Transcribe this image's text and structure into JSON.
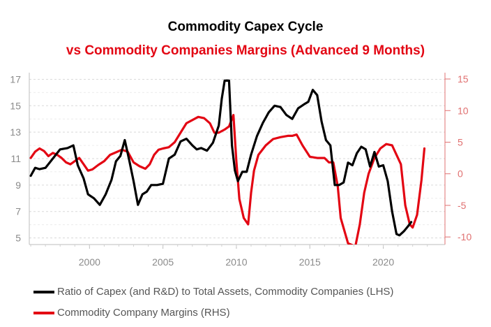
{
  "title": "Commodity Capex Cycle",
  "subtitle": "vs Commodity Companies Margins (Advanced 9 Months)",
  "colors": {
    "lhs": "#000000",
    "rhs": "#e30613",
    "grid": "#d9d9d9",
    "tick": "#8a8a8a",
    "rhs_tick": "#e07070"
  },
  "chart_data": {
    "type": "line",
    "title": "Commodity Capex Cycle",
    "subtitle": "vs Commodity Companies Margins (Advanced 9 Months)",
    "x_ticks": [
      "2000",
      "2005",
      "2010",
      "2015",
      "2020"
    ],
    "xlim": [
      1995.9,
      2024.2
    ],
    "y_left": {
      "ticks": [
        "5",
        "7",
        "9",
        "11",
        "13",
        "15",
        "17"
      ],
      "ylim": [
        4.5,
        17.5
      ]
    },
    "y_right": {
      "ticks": [
        "-10",
        "-5",
        "0",
        "5",
        "10",
        "15"
      ],
      "ylim": [
        -11.2,
        16
      ]
    },
    "grid": true,
    "legend_position": "bottom-left",
    "series": [
      {
        "name": "Ratio of Capex (and R&D) to Total Assets, Commodity Companies (LHS)",
        "axis": "left",
        "x": [
          1996.0,
          1996.3,
          1996.6,
          1997.0,
          1997.5,
          1998.0,
          1998.5,
          1998.9,
          1999.2,
          1999.6,
          1999.9,
          2000.3,
          2000.7,
          2001.1,
          2001.5,
          2001.8,
          2002.1,
          2002.4,
          2002.7,
          2003.0,
          2003.3,
          2003.6,
          2003.9,
          2004.2,
          2004.6,
          2005.0,
          2005.4,
          2005.8,
          2006.2,
          2006.6,
          2007.0,
          2007.3,
          2007.6,
          2008.0,
          2008.4,
          2008.8,
          2009.0,
          2009.2,
          2009.5,
          2009.7,
          2009.9,
          2010.1,
          2010.4,
          2010.7,
          2011.0,
          2011.4,
          2011.8,
          2012.2,
          2012.6,
          2013.0,
          2013.4,
          2013.8,
          2014.2,
          2014.6,
          2014.9,
          2015.2,
          2015.5,
          2015.8,
          2016.1,
          2016.4,
          2016.7,
          2017.0,
          2017.3,
          2017.6,
          2017.9,
          2018.2,
          2018.5,
          2018.8,
          2019.1,
          2019.4,
          2019.7,
          2020.0,
          2020.3,
          2020.6,
          2020.9,
          2021.1,
          2021.4,
          2021.7,
          2021.9
        ],
        "values": [
          9.7,
          10.3,
          10.2,
          10.3,
          11.0,
          11.7,
          11.8,
          12.0,
          10.5,
          9.5,
          8.3,
          8.0,
          7.5,
          8.3,
          9.4,
          10.8,
          11.2,
          12.4,
          10.9,
          9.3,
          7.5,
          8.3,
          8.5,
          9.0,
          9.0,
          9.1,
          11.0,
          11.3,
          12.3,
          12.5,
          12.0,
          11.7,
          11.8,
          11.6,
          12.2,
          13.5,
          15.5,
          16.9,
          16.9,
          12.0,
          10.1,
          9.3,
          10.0,
          10.0,
          11.3,
          12.7,
          13.7,
          14.5,
          15.0,
          14.9,
          14.3,
          14.0,
          14.8,
          15.1,
          15.3,
          16.2,
          15.8,
          13.8,
          12.4,
          12.0,
          9.0,
          9.0,
          9.2,
          10.7,
          10.5,
          11.4,
          11.9,
          11.7,
          10.4,
          11.5,
          10.4,
          10.5,
          9.3,
          7.0,
          5.3,
          5.2,
          5.5,
          5.9,
          6.2
        ]
      },
      {
        "name": "Commodity Company Margins (RHS)",
        "axis": "right",
        "x": [
          1996.0,
          1996.3,
          1996.6,
          1996.9,
          1997.2,
          1997.5,
          1997.8,
          1998.1,
          1998.4,
          1998.7,
          1999.0,
          1999.3,
          1999.6,
          1999.9,
          2000.2,
          2000.6,
          2001.0,
          2001.4,
          2001.8,
          2002.2,
          2002.6,
          2003.0,
          2003.4,
          2003.8,
          2004.1,
          2004.4,
          2004.7,
          2005.0,
          2005.4,
          2005.8,
          2006.2,
          2006.6,
          2007.0,
          2007.4,
          2007.8,
          2008.2,
          2008.5,
          2008.8,
          2009.2,
          2009.5,
          2009.8,
          2010.0,
          2010.2,
          2010.5,
          2010.8,
          2011.0,
          2011.2,
          2011.5,
          2012.0,
          2012.5,
          2013.0,
          2013.5,
          2013.8,
          2014.1,
          2014.5,
          2015.0,
          2015.5,
          2016.0,
          2016.3,
          2016.6,
          2016.9,
          2017.1,
          2017.6,
          2018.1,
          2018.4,
          2018.7,
          2019.0,
          2019.4,
          2019.8,
          2020.2,
          2020.6,
          2020.9,
          2021.2,
          2021.5,
          2021.8,
          2022.0,
          2022.3,
          2022.6,
          2022.8
        ],
        "values": [
          2.5,
          3.5,
          4.0,
          3.6,
          2.8,
          3.3,
          3.0,
          2.5,
          1.8,
          1.5,
          2.0,
          2.5,
          1.5,
          0.5,
          0.7,
          1.4,
          2.0,
          3.0,
          3.4,
          3.8,
          3.5,
          1.8,
          1.2,
          0.8,
          1.5,
          3.0,
          3.8,
          4.0,
          4.2,
          5.0,
          6.5,
          8.0,
          8.5,
          9.0,
          8.8,
          8.0,
          6.5,
          6.5,
          7.0,
          7.5,
          9.3,
          2.0,
          -4.0,
          -7.0,
          -8.0,
          -3.0,
          0.5,
          3.0,
          4.5,
          5.5,
          5.8,
          6.0,
          6.0,
          6.2,
          4.5,
          2.7,
          2.5,
          2.5,
          1.8,
          1.8,
          -2.0,
          -7.0,
          -11.0,
          -11.5,
          -8.0,
          -3.0,
          0.0,
          2.5,
          4.0,
          4.7,
          4.5,
          3.0,
          1.5,
          -5.0,
          -8.0,
          -8.5,
          -6.5,
          -1.0,
          4.0
        ]
      }
    ]
  }
}
